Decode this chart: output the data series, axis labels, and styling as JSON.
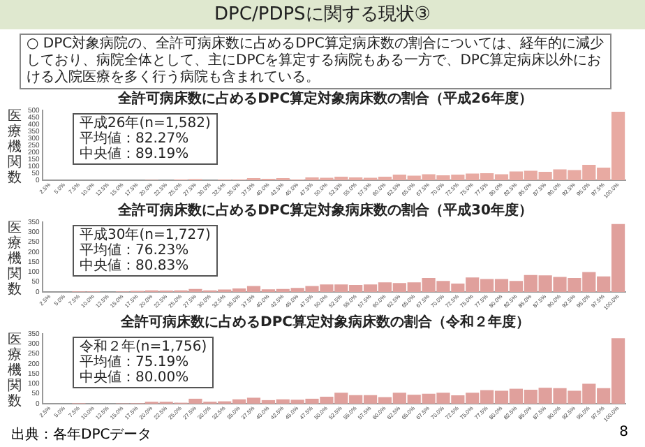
{
  "chart_data": [
    {
      "type": "other",
      "title": "DPC/PDPSに関する現状③",
      "annotations": [
        "○ DPC対象病院の、全許可病床数に占めるDPC算定病床数の割合については、経年的に減少しており、病院全体として、主にDPCを算定する病院もある一方で、DPC算定病床以外における入院医療を多く行う病院も含まれている。"
      ]
    },
    {
      "type": "bar",
      "title": "全許可病床数に占めるDPC算定対象病床数の割合（平成26年度）",
      "ylabel": "医療機関数",
      "annotations": [
        "平成26年(n=1,582)",
        "平均値：82.27%",
        "中央値：89.19%"
      ],
      "legend": false,
      "grid": false,
      "color": "#e8aaa2",
      "ylim": [
        0,
        500
      ],
      "yticks": [
        0,
        50,
        100,
        150,
        200,
        250,
        300,
        350,
        400,
        450,
        500
      ],
      "categories": [
        "2.5%",
        "5.0%",
        "7.5%",
        "10.0%",
        "12.5%",
        "15.0%",
        "17.5%",
        "20.0%",
        "22.5%",
        "25.0%",
        "27.5%",
        "30.0%",
        "32.5%",
        "35.0%",
        "37.5%",
        "40.0%",
        "42.5%",
        "45.0%",
        "47.5%",
        "50.0%",
        "52.5%",
        "55.0%",
        "57.5%",
        "60.0%",
        "62.5%",
        "65.0%",
        "67.5%",
        "70.0%",
        "72.5%",
        "75.0%",
        "77.5%",
        "80.0%",
        "82.5%",
        "85.0%",
        "87.5%",
        "90.0%",
        "92.5%",
        "95.0%",
        "97.5%",
        "100.0%"
      ],
      "values": [
        0,
        0,
        0,
        0,
        0,
        0,
        0,
        3,
        0,
        5,
        8,
        0,
        5,
        5,
        15,
        10,
        15,
        5,
        20,
        18,
        25,
        20,
        18,
        25,
        40,
        33,
        43,
        35,
        40,
        48,
        50,
        43,
        63,
        68,
        60,
        78,
        72,
        110,
        90,
        490
      ]
    },
    {
      "type": "bar",
      "title": "全許可病床数に占めるDPC算定対象病床数の割合（平成30年度）",
      "ylabel": "医療機関数",
      "annotations": [
        "平成30年(n=1,727)",
        "平均値：76.23%",
        "中央値：80.83%"
      ],
      "legend": false,
      "grid": false,
      "color": "#e0a09c",
      "ylim": [
        0,
        350
      ],
      "yticks": [
        0,
        50,
        100,
        150,
        200,
        250,
        300,
        350
      ],
      "categories": [
        "2.5%",
        "5.0%",
        "7.5%",
        "10.0%",
        "12.5%",
        "15.0%",
        "17.5%",
        "20.0%",
        "22.5%",
        "25.0%",
        "27.5%",
        "30.0%",
        "32.5%",
        "35.0%",
        "37.5%",
        "40.0%",
        "42.5%",
        "45.0%",
        "47.5%",
        "50.0%",
        "52.5%",
        "55.0%",
        "57.5%",
        "60.0%",
        "62.5%",
        "65.0%",
        "67.5%",
        "70.0%",
        "72.5%",
        "75.0%",
        "77.5%",
        "80.0%",
        "82.5%",
        "85.0%",
        "87.5%",
        "90.0%",
        "92.5%",
        "95.0%",
        "97.5%",
        "100.0%"
      ],
      "values": [
        0,
        0,
        3,
        3,
        0,
        3,
        5,
        8,
        7,
        8,
        15,
        8,
        12,
        18,
        30,
        13,
        15,
        20,
        30,
        38,
        38,
        35,
        38,
        48,
        45,
        48,
        70,
        55,
        42,
        73,
        65,
        65,
        55,
        85,
        83,
        75,
        70,
        100,
        78,
        340
      ]
    },
    {
      "type": "bar",
      "title": "全許可病床数に占めるDPC算定対象病床数の割合（令和２年度）",
      "ylabel": "医療機関数",
      "annotations": [
        "令和２年(n=1,756)",
        "平均値：75.19%",
        "中央値：80.00%"
      ],
      "legend": false,
      "grid": false,
      "color": "#e0a09c",
      "ylim": [
        0,
        350
      ],
      "yticks": [
        0,
        50,
        100,
        150,
        200,
        250,
        300,
        350
      ],
      "categories": [
        "2.5%",
        "5.0%",
        "7.5%",
        "10.0%",
        "12.5%",
        "15.0%",
        "17.5%",
        "20.0%",
        "22.5%",
        "25.0%",
        "27.5%",
        "30.0%",
        "32.5%",
        "35.0%",
        "37.5%",
        "40.0%",
        "42.5%",
        "45.0%",
        "47.5%",
        "50.0%",
        "52.5%",
        "55.0%",
        "57.5%",
        "60.0%",
        "62.5%",
        "65.0%",
        "67.5%",
        "70.0%",
        "72.5%",
        "75.0%",
        "77.5%",
        "80.0%",
        "82.5%",
        "85.0%",
        "87.5%",
        "90.0%",
        "92.5%",
        "95.0%",
        "97.5%",
        "100.0%"
      ],
      "values": [
        0,
        0,
        3,
        0,
        0,
        2,
        3,
        10,
        10,
        5,
        25,
        10,
        12,
        22,
        30,
        18,
        22,
        20,
        25,
        35,
        55,
        43,
        43,
        33,
        55,
        45,
        50,
        55,
        42,
        55,
        68,
        65,
        75,
        70,
        80,
        78,
        65,
        100,
        78,
        328
      ]
    },
    {
      "type": "other",
      "annotations": [
        "出典：各年DPCデータ",
        "8"
      ]
    }
  ]
}
